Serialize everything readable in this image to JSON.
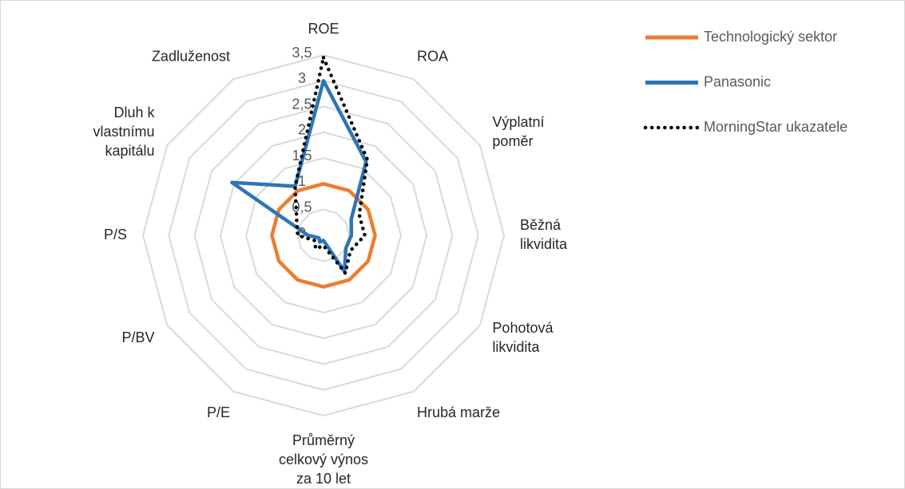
{
  "chart_data": {
    "type": "radar",
    "categories": [
      [
        "ROE"
      ],
      [
        "ROA"
      ],
      [
        "Výplatní",
        "poměr"
      ],
      [
        "Běžná",
        "likvidita"
      ],
      [
        "Pohotová",
        "likvidita"
      ],
      [
        "Hrubá marže"
      ],
      [
        "Průměrný",
        "celkový výnos",
        "za 10 let"
      ],
      [
        "P/E"
      ],
      [
        "P/BV"
      ],
      [
        "P/S"
      ],
      [
        "Dluh k",
        "vlastnímu",
        "kapitálu"
      ],
      [
        "Zadluženost"
      ]
    ],
    "series": [
      {
        "name": "Technologický sektor",
        "color": "#ed7d31",
        "style": "solid",
        "values": [
          1,
          1,
          1,
          1,
          1,
          1,
          1,
          1,
          1,
          1,
          1,
          1
        ]
      },
      {
        "name": "Panasonic",
        "color": "#2f75b5",
        "style": "solid",
        "values": [
          3,
          1.65,
          0.62,
          0.54,
          0.5,
          0.81,
          0.1,
          0.15,
          0.1,
          0.3,
          2.05,
          1.1
        ]
      },
      {
        "name": "MorningStar ukazatele",
        "color": "#000000",
        "style": "dotted",
        "values": [
          3.45,
          1.7,
          0.8,
          0.8,
          0.6,
          0.85,
          0.2,
          0.3,
          0.2,
          0.5,
          0.6,
          1.1
        ]
      }
    ],
    "ylim": [
      0,
      3.5
    ],
    "yticks": [
      0,
      {
        "value": 0.5,
        "label": "0,5"
      },
      1,
      {
        "value": 1.5,
        "label": "1,5"
      },
      2,
      {
        "value": 2.5,
        "label": "2,5"
      },
      3,
      {
        "value": 3.5,
        "label": "3,5"
      }
    ],
    "grid": true,
    "legend": "right"
  }
}
